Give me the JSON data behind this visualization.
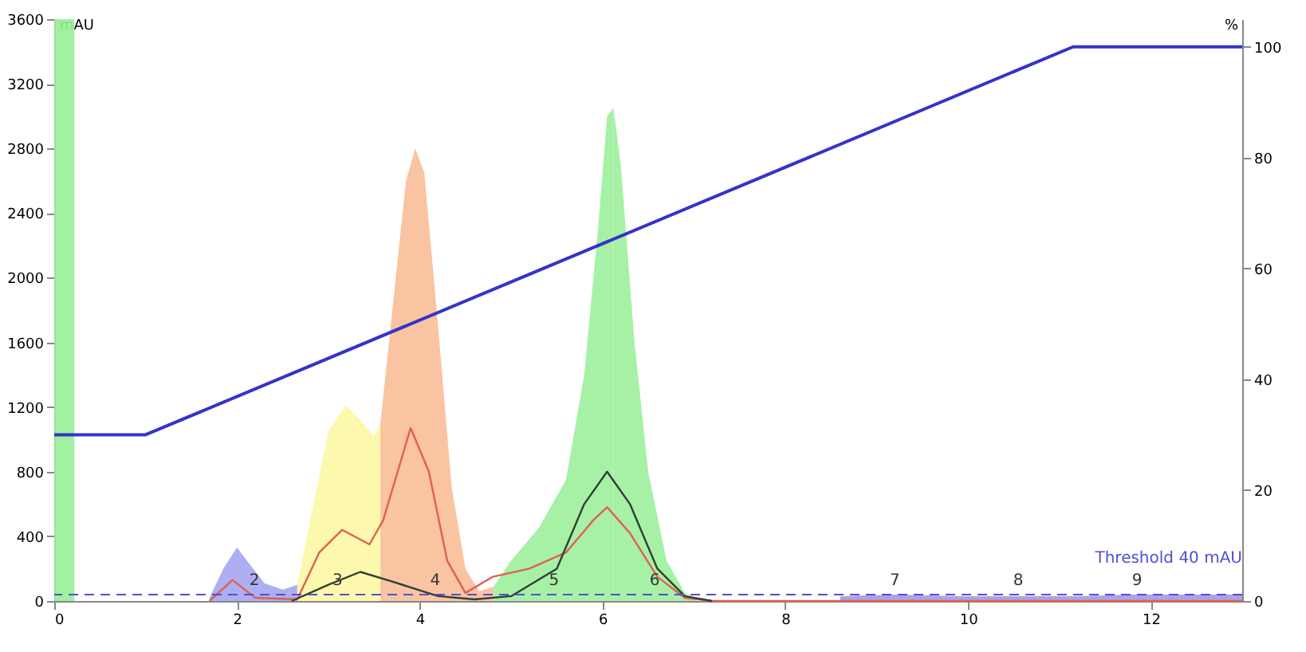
{
  "chart_data": {
    "type": "area",
    "ylabel": "mAU",
    "y2label": "%",
    "xlim": [
      0,
      13
    ],
    "xticks": [
      0,
      2,
      4,
      6,
      8,
      10,
      12
    ],
    "ylim": [
      0,
      3600
    ],
    "yticks": [
      0,
      400,
      800,
      1200,
      1600,
      2000,
      2400,
      2800,
      3200,
      3600
    ],
    "y2lim": [
      0,
      105
    ],
    "y2ticks": [
      0,
      20,
      40,
      60,
      80,
      100
    ],
    "grid": false,
    "series": [
      {
        "color": "#a0a0f0",
        "x": [
          1.7,
          1.85,
          2.0,
          2.15,
          2.3,
          2.5,
          2.66
        ],
        "values": [
          20,
          200,
          330,
          220,
          110,
          70,
          100
        ]
      },
      {
        "color": "#fbf7a0",
        "x": [
          2.66,
          2.8,
          3.0,
          3.19,
          3.35,
          3.5,
          3.57
        ],
        "values": [
          100,
          500,
          1050,
          1210,
          1120,
          1020,
          1100
        ]
      },
      {
        "color": "#f9b992",
        "x": [
          3.57,
          3.7,
          3.85,
          3.95,
          4.05,
          4.2,
          4.35,
          4.5,
          4.65,
          4.81
        ],
        "values": [
          1100,
          1800,
          2600,
          2800,
          2650,
          1700,
          700,
          200,
          60,
          90
        ]
      },
      {
        "color": "#98ee98",
        "x": [
          4.81,
          5.0,
          5.3,
          5.6,
          5.8,
          5.95,
          6.05,
          6.12
        ],
        "values": [
          90,
          250,
          450,
          750,
          1400,
          2300,
          3000,
          3050
        ]
      },
      {
        "color": "#98ee98",
        "x": [
          6.12,
          6.2,
          6.35,
          6.5,
          6.7,
          6.9,
          7.03
        ],
        "values": [
          3050,
          2700,
          1600,
          800,
          250,
          50,
          10
        ]
      },
      {
        "color": "#a090e0",
        "x": [
          8.6,
          9.2,
          9.9,
          10.5,
          11.2,
          11.8,
          12.53,
          13.0
        ],
        "values": [
          30,
          40,
          30,
          30,
          30,
          40,
          40,
          40
        ]
      },
      {
        "type": "line",
        "color": "#e06050",
        "x": [
          1.7,
          1.95,
          2.2,
          2.66,
          2.9,
          3.15,
          3.45,
          3.6,
          3.9,
          4.1,
          4.3,
          4.5,
          4.8,
          5.2,
          5.6,
          5.9,
          6.05,
          6.3,
          6.6,
          6.9,
          7.2,
          13.0
        ],
        "values": [
          0,
          130,
          20,
          10,
          300,
          440,
          350,
          500,
          1070,
          800,
          250,
          50,
          150,
          200,
          300,
          500,
          580,
          420,
          150,
          20,
          0,
          0
        ]
      },
      {
        "type": "line",
        "color": "#304030",
        "x": [
          2.6,
          3.0,
          3.35,
          3.7,
          4.2,
          4.6,
          5.0,
          5.5,
          5.8,
          6.05,
          6.3,
          6.6,
          6.9,
          7.2
        ],
        "values": [
          0,
          100,
          180,
          120,
          30,
          10,
          30,
          200,
          600,
          800,
          600,
          200,
          30,
          0
        ]
      },
      {
        "type": "line",
        "axis": "y2",
        "color": "#3434c8",
        "x": [
          0,
          1.0,
          11.15,
          13.0
        ],
        "values": [
          30,
          30,
          100,
          100
        ]
      }
    ],
    "bands": [
      {
        "axis": "x",
        "from": 0,
        "to": 0.22,
        "color": "#98ee98"
      }
    ],
    "ref_lines": [
      {
        "axis": "y",
        "value": 40,
        "label": "Threshold 40 mAU",
        "color": "#5050d0",
        "line_style": "dashed"
      }
    ],
    "annotations": [
      {
        "text": "2",
        "x": 2.19,
        "y": 40
      },
      {
        "text": "3",
        "x": 3.1,
        "y": 40
      },
      {
        "text": "4",
        "x": 4.17,
        "y": 40
      },
      {
        "text": "5",
        "x": 5.47,
        "y": 40
      },
      {
        "text": "6",
        "x": 6.57,
        "y": 40
      },
      {
        "text": "7",
        "x": 9.2,
        "y": 40
      },
      {
        "text": "8",
        "x": 10.55,
        "y": 40
      },
      {
        "text": "9",
        "x": 11.85,
        "y": 40
      }
    ]
  }
}
